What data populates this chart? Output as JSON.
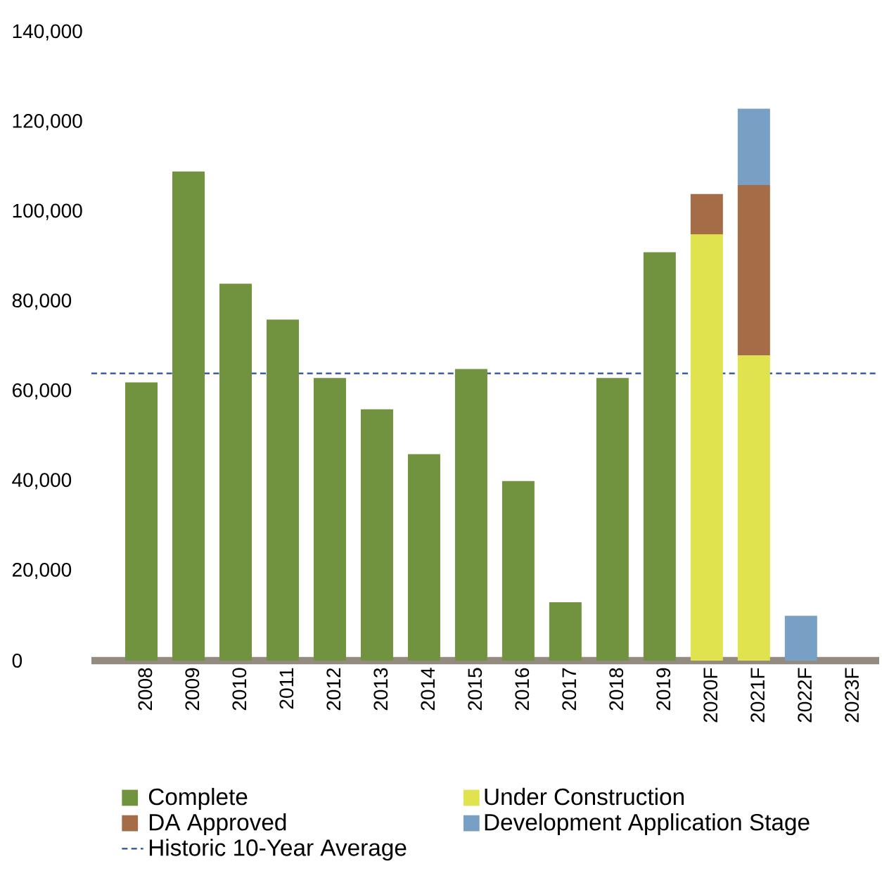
{
  "chart_data": {
    "type": "bar",
    "stacked": true,
    "categories": [
      "2008",
      "2009",
      "2010",
      "2011",
      "2012",
      "2013",
      "2014",
      "2015",
      "2016",
      "2017",
      "2018",
      "2019",
      "2020F",
      "2021F",
      "2022F",
      "2023F"
    ],
    "series": [
      {
        "name": "Complete",
        "color": "#71933f",
        "values": [
          62000,
          109000,
          84000,
          76000,
          63000,
          56000,
          46000,
          65000,
          40000,
          13000,
          63000,
          91000,
          null,
          null,
          null,
          null
        ]
      },
      {
        "name": "Under Construction",
        "color": "#e1e34e",
        "values": [
          null,
          null,
          null,
          null,
          null,
          null,
          null,
          null,
          null,
          null,
          null,
          null,
          95000,
          68000,
          null,
          null
        ]
      },
      {
        "name": "DA Approved",
        "color": "#a46c47",
        "values": [
          null,
          null,
          null,
          null,
          null,
          null,
          null,
          null,
          null,
          null,
          null,
          null,
          9000,
          38000,
          null,
          null
        ]
      },
      {
        "name": "Development Application Stage",
        "color": "#789fc4",
        "values": [
          null,
          null,
          null,
          null,
          null,
          null,
          null,
          null,
          null,
          null,
          null,
          null,
          null,
          17000,
          10000,
          null
        ]
      }
    ],
    "ylim": [
      0,
      140000
    ],
    "yticks": [
      {
        "value": 0,
        "label": "0"
      },
      {
        "value": 20000,
        "label": "20,000"
      },
      {
        "value": 40000,
        "label": "40,000"
      },
      {
        "value": 60000,
        "label": "60,000"
      },
      {
        "value": 80000,
        "label": "80,000"
      },
      {
        "value": 100000,
        "label": "100,000"
      },
      {
        "value": 120000,
        "label": "120,000"
      },
      {
        "value": 140000,
        "label": "140,000"
      }
    ],
    "ref_lines": [
      {
        "axis": "y",
        "value": 64000,
        "label": "Historic 10-Year Average",
        "color": "#3a5fad",
        "line_style": "dashed"
      }
    ],
    "legend": "bottom"
  }
}
